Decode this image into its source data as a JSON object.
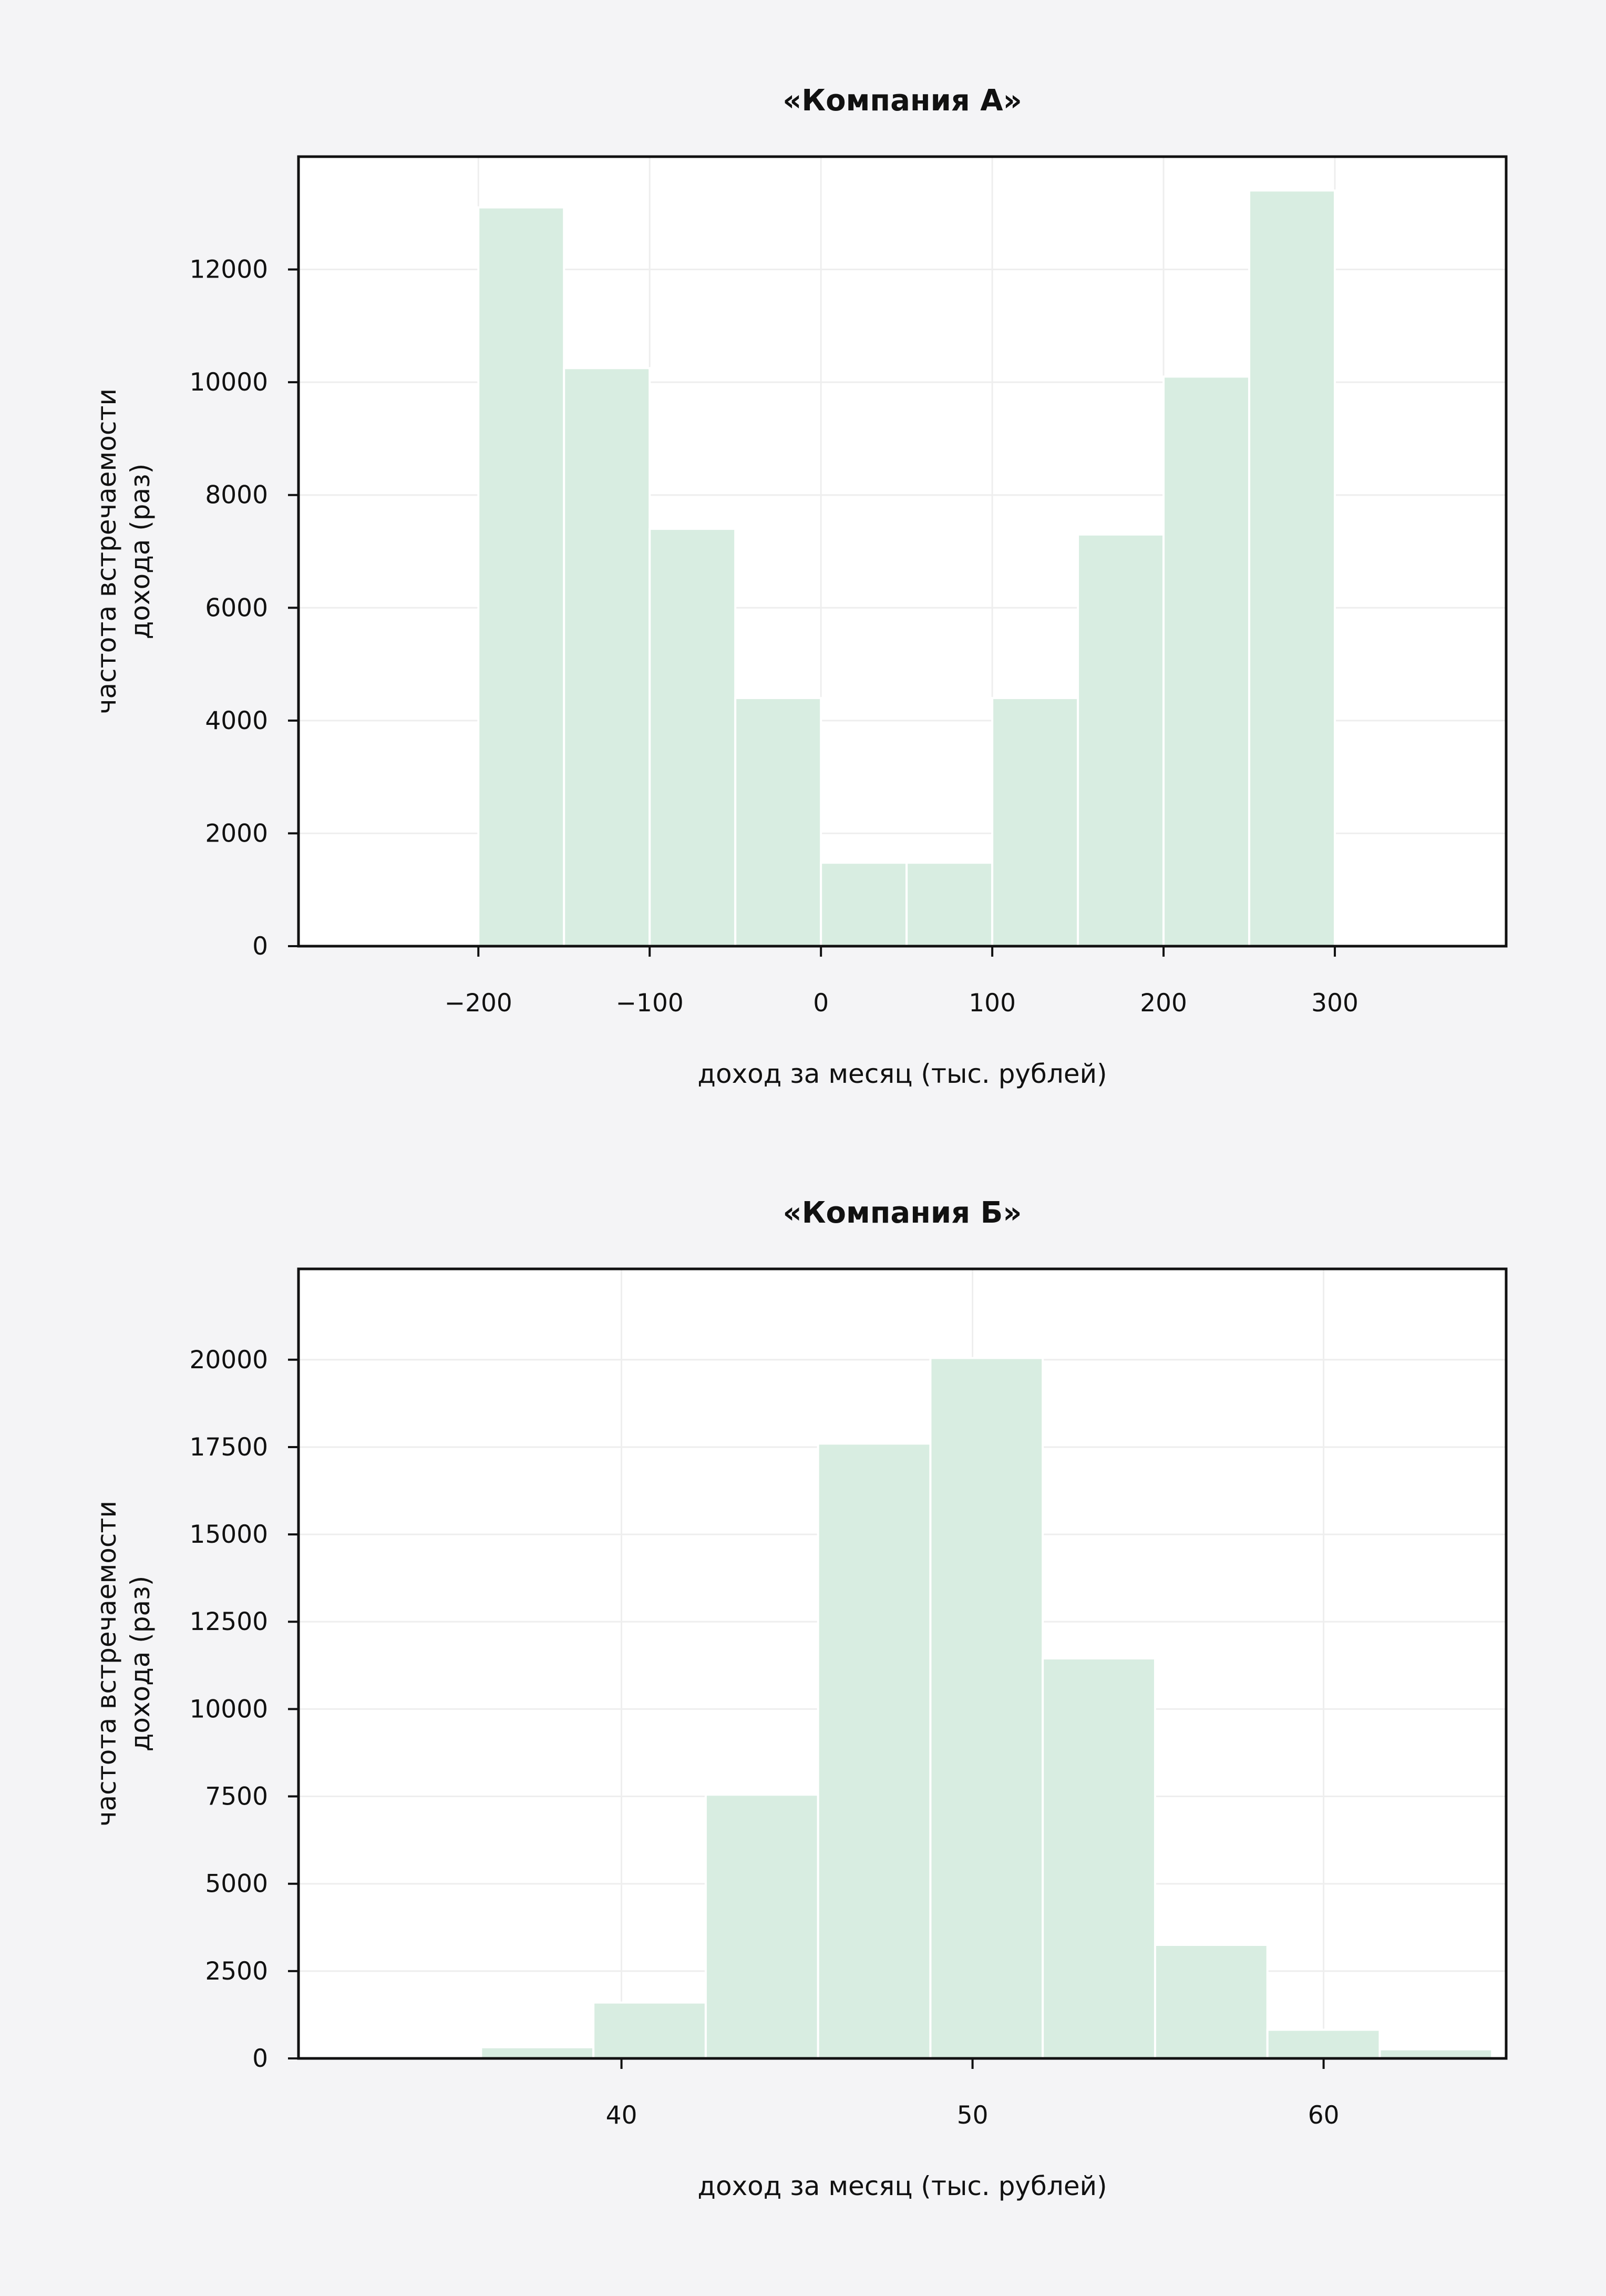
{
  "colors": {
    "background": "#f4f4f6",
    "plot_background": "#ffffff",
    "bar_fill": "#d8ede1",
    "bar_edge": "#ffffff",
    "grid": "#eeeeee",
    "frame": "#111111"
  },
  "chart_data": [
    {
      "type": "bar",
      "title": "«Компания А»",
      "xlabel": "доход за месяц (тыс. рублей)",
      "ylabel": [
        "частота встречаемости",
        "дохода (раз)"
      ],
      "xlim": [
        -305,
        400
      ],
      "ylim": [
        0,
        14000
      ],
      "xticks": [
        -200,
        -100,
        0,
        100,
        200,
        300
      ],
      "xtick_labels": [
        "−200",
        "−100",
        "0",
        "100",
        "200",
        "300"
      ],
      "yticks": [
        0,
        2000,
        4000,
        6000,
        8000,
        10000,
        12000
      ],
      "ytick_labels": [
        "0",
        "2000",
        "4000",
        "6000",
        "8000",
        "10000",
        "12000"
      ],
      "grid": true,
      "bins": [
        {
          "x0": -200,
          "x1": -150,
          "value": 13100
        },
        {
          "x0": -150,
          "x1": -100,
          "value": 10250
        },
        {
          "x0": -100,
          "x1": -50,
          "value": 7400
        },
        {
          "x0": -50,
          "x1": 0,
          "value": 4400
        },
        {
          "x0": 0,
          "x1": 50,
          "value": 1480
        },
        {
          "x0": 50,
          "x1": 100,
          "value": 1480
        },
        {
          "x0": 100,
          "x1": 150,
          "value": 4400
        },
        {
          "x0": 150,
          "x1": 200,
          "value": 7300
        },
        {
          "x0": 200,
          "x1": 250,
          "value": 10100
        },
        {
          "x0": 250,
          "x1": 300,
          "value": 13400
        }
      ]
    },
    {
      "type": "bar",
      "title": "«Компания Б»",
      "xlabel": "доход за месяц (тыс. рублей)",
      "ylabel": [
        "частота встречаемости",
        "дохода (раз)"
      ],
      "xlim": [
        30.8,
        65.2
      ],
      "ylim": [
        0,
        22600
      ],
      "xticks": [
        40,
        50,
        60
      ],
      "xtick_labels": [
        "40",
        "50",
        "60"
      ],
      "yticks": [
        0,
        2500,
        5000,
        7500,
        10000,
        12500,
        15000,
        17500,
        20000
      ],
      "ytick_labels": [
        "0",
        "2500",
        "5000",
        "7500",
        "10000",
        "12500",
        "15000",
        "17500",
        "20000"
      ],
      "grid": true,
      "bins": [
        {
          "x0": 36.0,
          "x1": 39.2,
          "value": 320
        },
        {
          "x0": 39.2,
          "x1": 42.4,
          "value": 1600
        },
        {
          "x0": 42.4,
          "x1": 45.6,
          "value": 7550
        },
        {
          "x0": 45.6,
          "x1": 48.8,
          "value": 17600
        },
        {
          "x0": 48.8,
          "x1": 52.0,
          "value": 20050
        },
        {
          "x0": 52.0,
          "x1": 55.2,
          "value": 11450
        },
        {
          "x0": 55.2,
          "x1": 58.4,
          "value": 3250
        },
        {
          "x0": 58.4,
          "x1": 61.6,
          "value": 820
        },
        {
          "x0": 61.6,
          "x1": 64.8,
          "value": 260
        }
      ]
    }
  ]
}
